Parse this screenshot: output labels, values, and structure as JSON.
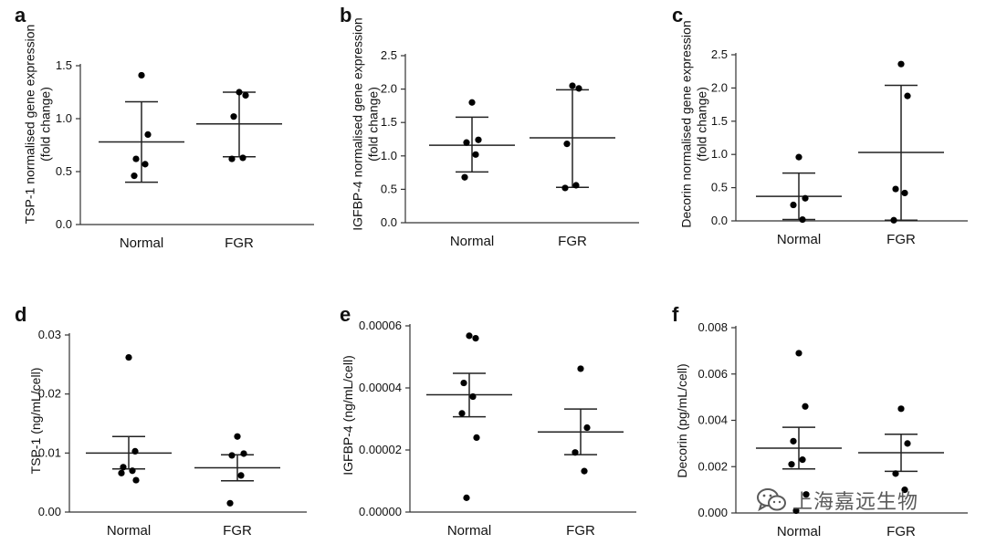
{
  "watermark": {
    "text": "上海嘉远生物"
  },
  "chart_data": [
    {
      "panel": "a",
      "type": "scatter",
      "ylabel": [
        "TSP-1 normalised gene expression",
        "(fold change)"
      ],
      "categories": [
        "Normal",
        "FGR"
      ],
      "ylim": [
        0,
        1.5
      ],
      "yticks": [
        "0.0",
        "0.5",
        "1.0",
        "1.5"
      ],
      "groups": [
        {
          "name": "Normal",
          "points": [
            1.41,
            0.85,
            0.62,
            0.57,
            0.46
          ],
          "mean": 0.78,
          "err_low": 0.4,
          "err_high": 1.16
        },
        {
          "name": "FGR",
          "points": [
            1.25,
            1.22,
            1.02,
            0.63,
            0.62
          ],
          "mean": 0.95,
          "err_low": 0.64,
          "err_high": 1.25
        }
      ]
    },
    {
      "panel": "b",
      "type": "scatter",
      "ylabel": [
        "IGFBP-4 normalised gene expression",
        "(fold change)"
      ],
      "categories": [
        "Normal",
        "FGR"
      ],
      "ylim": [
        0,
        2.5
      ],
      "yticks": [
        "0.0",
        "0.5",
        "1.0",
        "1.5",
        "2.0",
        "2.5"
      ],
      "groups": [
        {
          "name": "Normal",
          "points": [
            1.8,
            1.24,
            1.2,
            1.02,
            0.68
          ],
          "mean": 1.16,
          "err_low": 0.76,
          "err_high": 1.58
        },
        {
          "name": "FGR",
          "points": [
            2.05,
            2.01,
            1.18,
            0.56,
            0.52
          ],
          "mean": 1.27,
          "err_low": 0.53,
          "err_high": 1.99
        }
      ]
    },
    {
      "panel": "c",
      "type": "scatter",
      "ylabel": [
        "Decorin normalised gene expression",
        "(fold change)"
      ],
      "categories": [
        "Normal",
        "FGR"
      ],
      "ylim": [
        0,
        2.5
      ],
      "yticks": [
        "0.0",
        "0.5",
        "1.0",
        "1.5",
        "2.0",
        "2.5"
      ],
      "groups": [
        {
          "name": "Normal",
          "points": [
            0.96,
            0.34,
            0.24,
            0.02
          ],
          "mean": 0.37,
          "err_low": 0.02,
          "err_high": 0.72
        },
        {
          "name": "FGR",
          "points": [
            2.36,
            1.88,
            0.48,
            0.42,
            0.01
          ],
          "mean": 1.03,
          "err_low": 0.01,
          "err_high": 2.04
        }
      ]
    },
    {
      "panel": "d",
      "type": "scatter",
      "ylabel": [
        "TSP-1 (ng/mL/cell)"
      ],
      "categories": [
        "Normal",
        "FGR"
      ],
      "ylim": [
        0,
        0.03
      ],
      "yticks": [
        "0.00",
        "0.01",
        "0.02",
        "0.03"
      ],
      "groups": [
        {
          "name": "Normal",
          "points": [
            0.0262,
            0.0103,
            0.0076,
            0.007,
            0.0066,
            0.0054
          ],
          "mean": 0.01,
          "err_low": 0.0073,
          "err_high": 0.0128
        },
        {
          "name": "FGR",
          "points": [
            0.0128,
            0.0099,
            0.0096,
            0.0062,
            0.0015
          ],
          "mean": 0.0075,
          "err_low": 0.0053,
          "err_high": 0.0097
        }
      ]
    },
    {
      "panel": "e",
      "type": "scatter",
      "ylabel": [
        "IGFBP-4 (ng/mL/cell)"
      ],
      "categories": [
        "Normal",
        "FGR"
      ],
      "ylim": [
        0,
        6e-05
      ],
      "yticks": [
        "0.00000",
        "0.00002",
        "0.00004",
        "0.00006"
      ],
      "groups": [
        {
          "name": "Normal",
          "points": [
            5.68e-05,
            5.6e-05,
            4.16e-05,
            3.72e-05,
            3.18e-05,
            2.4e-05,
            4.6e-06
          ],
          "mean": 3.78e-05,
          "err_low": 3.07e-05,
          "err_high": 4.47e-05
        },
        {
          "name": "FGR",
          "points": [
            4.62e-05,
            2.72e-05,
            1.92e-05,
            1.32e-05
          ],
          "mean": 2.58e-05,
          "err_low": 1.85e-05,
          "err_high": 3.32e-05
        }
      ]
    },
    {
      "panel": "f",
      "type": "scatter",
      "ylabel": [
        "Decorin (pg/mL/cell)"
      ],
      "categories": [
        "Normal",
        "FGR"
      ],
      "ylim": [
        0,
        0.008
      ],
      "yticks": [
        "0.000",
        "0.002",
        "0.004",
        "0.006",
        "0.008"
      ],
      "groups": [
        {
          "name": "Normal",
          "points": [
            0.0069,
            0.0046,
            0.0031,
            0.0023,
            0.0021,
            0.0008,
            0.0001
          ],
          "mean": 0.0028,
          "err_low": 0.0019,
          "err_high": 0.0037
        },
        {
          "name": "FGR",
          "points": [
            0.0045,
            0.003,
            0.0017,
            0.001
          ],
          "mean": 0.0026,
          "err_low": 0.0018,
          "err_high": 0.0034
        }
      ]
    }
  ]
}
